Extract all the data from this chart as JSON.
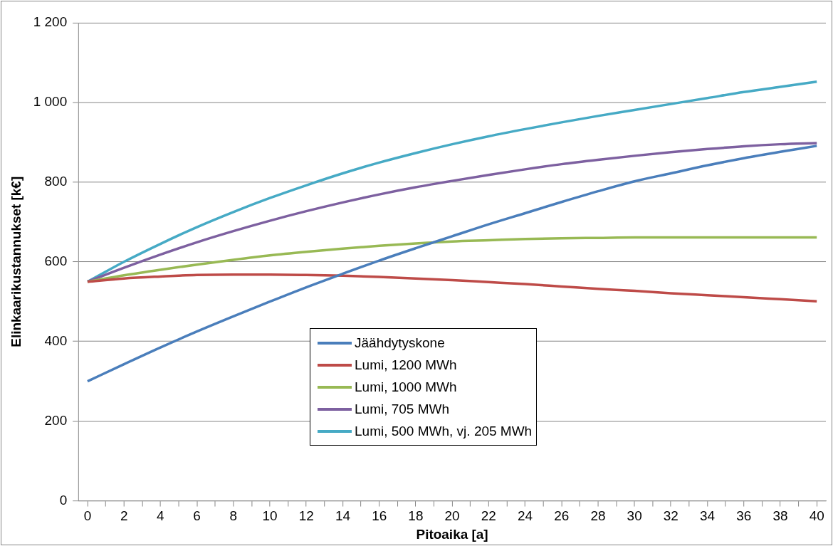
{
  "chart_data": {
    "type": "line",
    "xlabel": "Pitoaika [a]",
    "ylabel": "Elinkaarikustannukset [k€]",
    "x": [
      0,
      2,
      4,
      6,
      8,
      10,
      12,
      14,
      16,
      18,
      20,
      22,
      24,
      26,
      28,
      30,
      32,
      34,
      36,
      38,
      40
    ],
    "xlim": [
      -0.5,
      40.5
    ],
    "xticks": [
      0,
      {
        "value": 1,
        "label": null
      },
      2,
      {
        "value": 3,
        "label": null
      },
      4,
      {
        "value": 5,
        "label": null
      },
      6,
      {
        "value": 7,
        "label": null
      },
      8,
      {
        "value": 9,
        "label": null
      },
      10,
      {
        "value": 11,
        "label": null
      },
      12,
      {
        "value": 13,
        "label": null
      },
      14,
      {
        "value": 15,
        "label": null
      },
      16,
      {
        "value": 17,
        "label": null
      },
      18,
      {
        "value": 19,
        "label": null
      },
      20,
      {
        "value": 21,
        "label": null
      },
      22,
      {
        "value": 23,
        "label": null
      },
      24,
      {
        "value": 25,
        "label": null
      },
      26,
      {
        "value": 27,
        "label": null
      },
      28,
      {
        "value": 29,
        "label": null
      },
      30,
      {
        "value": 31,
        "label": null
      },
      32,
      {
        "value": 33,
        "label": null
      },
      34,
      {
        "value": 35,
        "label": null
      },
      36,
      {
        "value": 37,
        "label": null
      },
      38,
      {
        "value": 39,
        "label": null
      },
      40
    ],
    "ylim": [
      0,
      1200
    ],
    "yticks": [
      0,
      200,
      400,
      600,
      800,
      {
        "value": 1000,
        "label": "1 000"
      },
      {
        "value": 1200,
        "label": "1 200"
      }
    ],
    "grid": "y",
    "legend": "bottom",
    "marker": "none",
    "line_style": "solid",
    "series": [
      {
        "name": "Jäähdytyskone",
        "color": "#4a7ebb",
        "values": [
          300,
          343,
          385,
          425,
          463,
          500,
          536,
          570,
          603,
          634,
          664,
          694,
          722,
          750,
          777,
          802,
          822,
          842,
          860,
          876,
          891
        ]
      },
      {
        "name": "Lumi, 1200 MWh",
        "color": "#be4b48",
        "values": [
          550,
          558,
          563,
          567,
          568,
          568,
          567,
          565,
          562,
          558,
          554,
          549,
          544,
          538,
          532,
          527,
          521,
          516,
          511,
          506,
          501
        ]
      },
      {
        "name": "Lumi, 1000 MWh",
        "color": "#98b954",
        "values": [
          550,
          566,
          580,
          593,
          605,
          616,
          625,
          633,
          640,
          646,
          651,
          654,
          657,
          659,
          660,
          661,
          661,
          661,
          661,
          661,
          661
        ]
      },
      {
        "name": "Lumi, 705 MWh",
        "color": "#7d60a0",
        "values": [
          550,
          585,
          618,
          649,
          677,
          703,
          727,
          749,
          769,
          787,
          803,
          818,
          832,
          845,
          856,
          866,
          875,
          883,
          890,
          895,
          898
        ]
      },
      {
        "name": "Lumi, 500 MWh, vj. 205 MWh",
        "color": "#46aac5",
        "values": [
          550,
          600,
          645,
          687,
          725,
          760,
          792,
          822,
          849,
          873,
          895,
          915,
          933,
          950,
          966,
          981,
          996,
          1011,
          1026,
          1039,
          1052
        ]
      }
    ]
  }
}
